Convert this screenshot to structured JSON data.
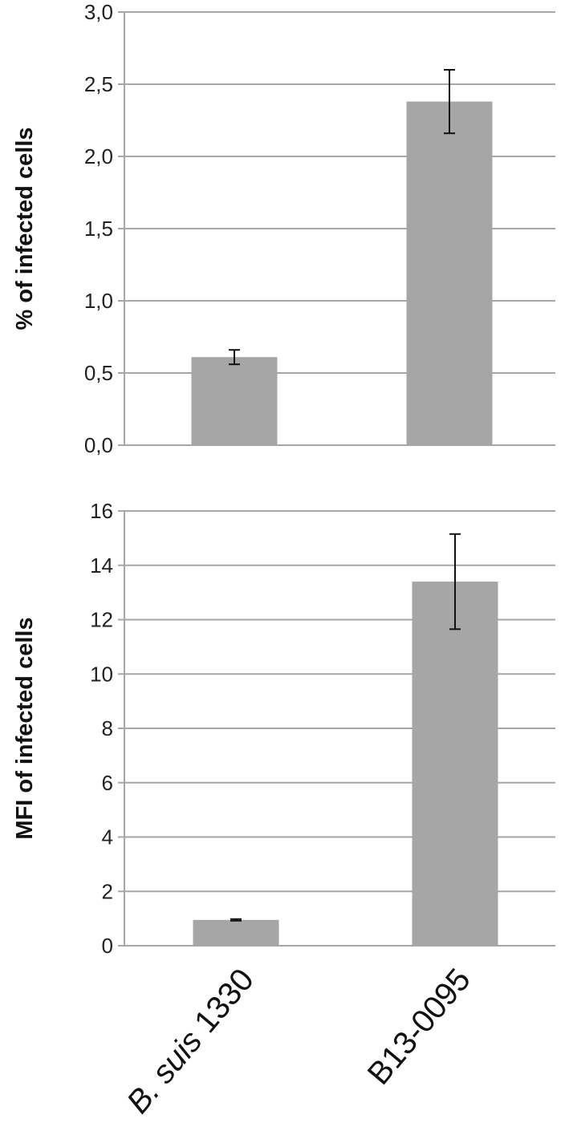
{
  "chart_data": [
    {
      "type": "bar",
      "title": "",
      "xlabel": "",
      "ylabel": "% of infected cells",
      "categories": [
        "B. suis 1330",
        "B13-0095"
      ],
      "values": [
        0.61,
        2.38
      ],
      "error": [
        0.05,
        0.22
      ],
      "ylim": [
        0,
        3.0
      ],
      "yticks": [
        0.0,
        0.5,
        1.0,
        1.5,
        2.0,
        2.5,
        3.0
      ],
      "ytick_labels": [
        "0,0",
        "0,5",
        "1,0",
        "1,5",
        "2,0",
        "2,5",
        "3,0"
      ],
      "grid": true,
      "bar_color": "#a6a6a6",
      "grid_color": "#a6a6a6"
    },
    {
      "type": "bar",
      "title": "",
      "xlabel": "",
      "ylabel": "MFI of infected cells",
      "categories": [
        "B. suis 1330",
        "B13-0095"
      ],
      "values": [
        0.95,
        13.4
      ],
      "error": [
        0.03,
        1.75
      ],
      "ylim": [
        0,
        16
      ],
      "yticks": [
        0,
        2,
        4,
        6,
        8,
        10,
        12,
        14,
        16
      ],
      "ytick_labels": [
        "0",
        "2",
        "4",
        "6",
        "8",
        "10",
        "12",
        "14",
        "16"
      ],
      "grid": true,
      "bar_color": "#a6a6a6",
      "grid_color": "#a6a6a6"
    }
  ],
  "x_axis": {
    "category_labels": [
      {
        "prefix": "B. suis",
        "suffix": " 1330"
      },
      {
        "prefix": "",
        "suffix": "B13-0095"
      }
    ]
  }
}
